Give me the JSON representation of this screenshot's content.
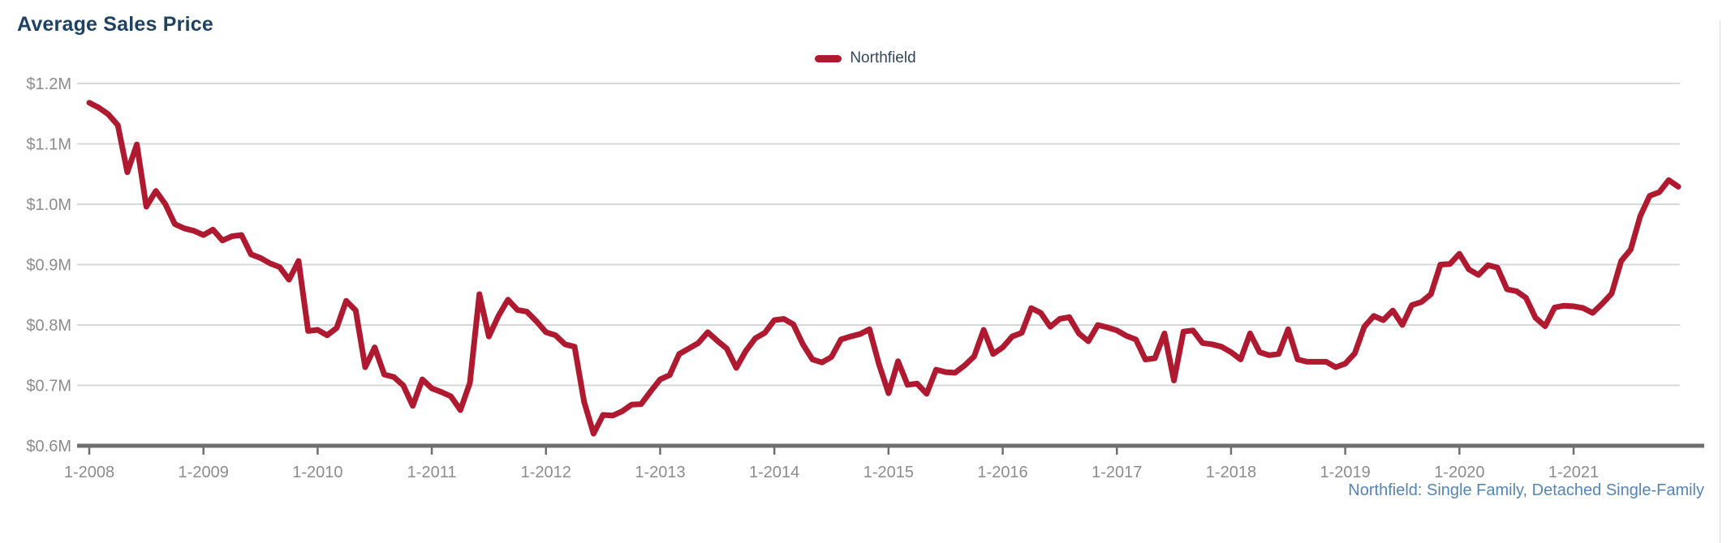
{
  "header": {
    "title": "Average Sales Price"
  },
  "legend": {
    "label": "Northfield"
  },
  "footer": {
    "note": "Northfield: Single Family, Detached Single-Family"
  },
  "colors": {
    "line": "#B01A31",
    "title": "#1E4263",
    "legend_text": "#33475B",
    "footer_text": "#5585B5",
    "tick_label": "#8C8C8C",
    "gridline": "#D8D8D8",
    "axis": "#6E6E6E",
    "panel_border": "#D9D9D9",
    "background": "#FFFFFF"
  },
  "chart_data": {
    "type": "line",
    "title": "Average Sales Price",
    "unit": "USD millions",
    "x_range": {
      "start": "1-2008",
      "end": "12-2021",
      "interval": "monthly"
    },
    "x_tick_labels": [
      "1-2008",
      "1-2009",
      "1-2010",
      "1-2011",
      "1-2012",
      "1-2013",
      "1-2014",
      "1-2015",
      "1-2016",
      "1-2017",
      "1-2018",
      "1-2019",
      "1-2020",
      "1-2021"
    ],
    "x_tick_month_indices": [
      0,
      12,
      24,
      36,
      48,
      60,
      72,
      84,
      96,
      108,
      120,
      132,
      144,
      156
    ],
    "y_ticks": [
      {
        "label": "$1.2M",
        "value": 1.2
      },
      {
        "label": "$1.1M",
        "value": 1.1
      },
      {
        "label": "$1.0M",
        "value": 1.0
      },
      {
        "label": "$0.9M",
        "value": 0.9
      },
      {
        "label": "$0.8M",
        "value": 0.8
      },
      {
        "label": "$0.7M",
        "value": 0.7
      },
      {
        "label": "$0.6M",
        "value": 0.6
      }
    ],
    "ylim": [
      0.6,
      1.2
    ],
    "grid": true,
    "legend_position": "top-center",
    "series": [
      {
        "name": "Northfield",
        "values": [
          1.168,
          1.16,
          1.149,
          1.131,
          1.053,
          1.099,
          0.996,
          1.022,
          1.0,
          0.967,
          0.96,
          0.956,
          0.949,
          0.958,
          0.94,
          0.947,
          0.949,
          0.917,
          0.911,
          0.902,
          0.896,
          0.875,
          0.906,
          0.79,
          0.792,
          0.783,
          0.795,
          0.84,
          0.824,
          0.73,
          0.763,
          0.718,
          0.714,
          0.7,
          0.666,
          0.71,
          0.695,
          0.689,
          0.682,
          0.659,
          0.704,
          0.851,
          0.781,
          0.815,
          0.842,
          0.825,
          0.822,
          0.806,
          0.788,
          0.783,
          0.768,
          0.764,
          0.673,
          0.62,
          0.651,
          0.65,
          0.657,
          0.668,
          0.669,
          0.69,
          0.71,
          0.717,
          0.752,
          0.761,
          0.77,
          0.788,
          0.774,
          0.761,
          0.729,
          0.757,
          0.778,
          0.787,
          0.808,
          0.81,
          0.801,
          0.768,
          0.743,
          0.738,
          0.747,
          0.776,
          0.781,
          0.785,
          0.793,
          0.735,
          0.687,
          0.74,
          0.701,
          0.703,
          0.686,
          0.726,
          0.722,
          0.721,
          0.733,
          0.748,
          0.792,
          0.752,
          0.763,
          0.781,
          0.787,
          0.828,
          0.82,
          0.797,
          0.81,
          0.813,
          0.786,
          0.773,
          0.8,
          0.796,
          0.791,
          0.782,
          0.776,
          0.743,
          0.745,
          0.786,
          0.708,
          0.789,
          0.791,
          0.77,
          0.768,
          0.764,
          0.755,
          0.743,
          0.786,
          0.755,
          0.75,
          0.752,
          0.793,
          0.743,
          0.739,
          0.739,
          0.739,
          0.73,
          0.736,
          0.753,
          0.797,
          0.815,
          0.808,
          0.824,
          0.8,
          0.833,
          0.838,
          0.851,
          0.9,
          0.901,
          0.918,
          0.892,
          0.883,
          0.899,
          0.895,
          0.859,
          0.856,
          0.845,
          0.812,
          0.798,
          0.829,
          0.832,
          0.831,
          0.828,
          0.82,
          0.835,
          0.852,
          0.906,
          0.925,
          0.98,
          1.014,
          1.02,
          1.04,
          1.029
        ]
      }
    ]
  }
}
